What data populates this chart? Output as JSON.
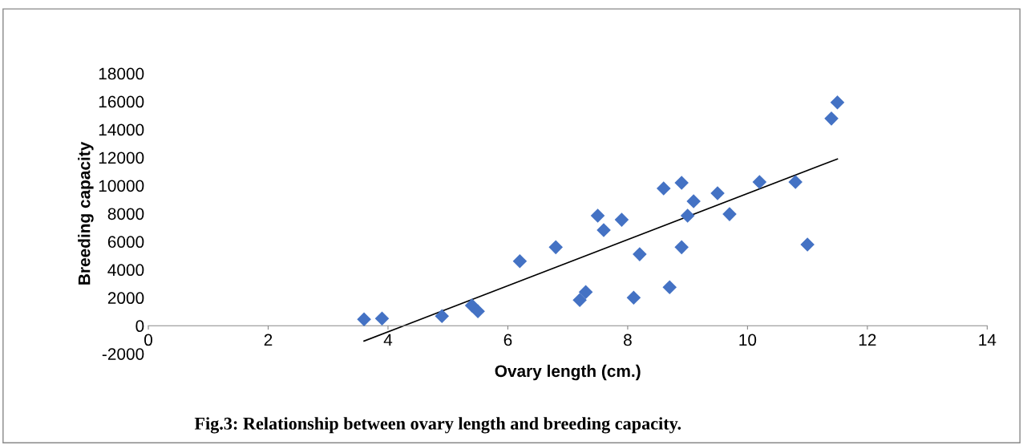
{
  "chart_data": {
    "type": "scatter",
    "xlabel": "Ovary length (cm.)",
    "ylabel": "Breeding capacity",
    "annotations": [
      "Fig.3: Relationship between ovary length and breeding capacity."
    ],
    "grid": false,
    "legend": false,
    "xlim": [
      0,
      14
    ],
    "xticks": [
      0,
      2,
      4,
      6,
      8,
      10,
      12,
      14
    ],
    "ylim": [
      -2000,
      18000
    ],
    "yticks": [
      -2000,
      0,
      2000,
      4000,
      6000,
      8000,
      10000,
      12000,
      14000,
      16000,
      18000
    ],
    "series": [
      {
        "marker": "diamond",
        "color": "#4472c4",
        "x": [
          3.6,
          3.9,
          4.9,
          5.4,
          5.5,
          6.2,
          6.8,
          7.2,
          7.3,
          7.5,
          7.6,
          7.9,
          8.1,
          8.2,
          8.6,
          8.7,
          8.9,
          8.9,
          9.0,
          9.1,
          9.5,
          9.7,
          10.2,
          10.8,
          11.0,
          11.4,
          11.5
        ],
        "values": [
          460,
          520,
          690,
          1450,
          1030,
          4600,
          5600,
          1830,
          2400,
          7850,
          6820,
          7560,
          2000,
          5100,
          9800,
          2750,
          10200,
          5600,
          7850,
          8880,
          9450,
          7960,
          10250,
          10250,
          5790,
          14780,
          15930
        ]
      },
      {
        "type": "line",
        "marker": "none",
        "color": "#000000",
        "x": [
          3.6,
          11.5
        ],
        "values": [
          -1090,
          11900
        ]
      }
    ]
  }
}
